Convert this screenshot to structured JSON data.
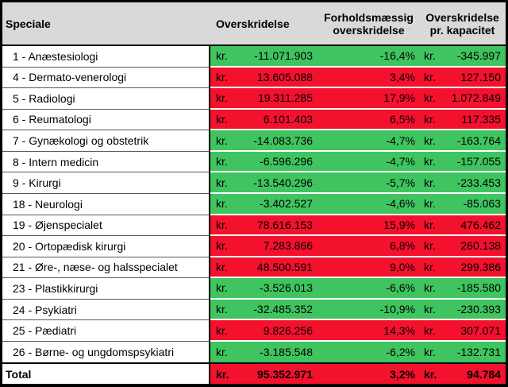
{
  "chart_data": {
    "type": "table",
    "columns": [
      "Speciale",
      "Overskridelse",
      "Forholdsmæssig overskridelse",
      "Overskridelse pr. kapacitet"
    ],
    "currency_prefix": "kr.",
    "rows": [
      {
        "speciale": "1 - Anæstesiologi",
        "overskridelse": "-11.071.903",
        "pct": "-16,4%",
        "per_kapacitet": "-345.997",
        "color": "green"
      },
      {
        "speciale": "4 - Dermato-venerologi",
        "overskridelse": "13.605.088",
        "pct": "3,4%",
        "per_kapacitet": "127.150",
        "color": "red"
      },
      {
        "speciale": "5 - Radiologi",
        "overskridelse": "19.311.285",
        "pct": "17,9%",
        "per_kapacitet": "1.072.849",
        "color": "red"
      },
      {
        "speciale": "6 - Reumatologi",
        "overskridelse": "6.101.403",
        "pct": "6,5%",
        "per_kapacitet": "117.335",
        "color": "red"
      },
      {
        "speciale": "7 - Gynækologi og obstetrik",
        "overskridelse": "-14.083.736",
        "pct": "-4,7%",
        "per_kapacitet": "-163.764",
        "color": "green"
      },
      {
        "speciale": "8 - Intern medicin",
        "overskridelse": "-6.596.296",
        "pct": "-4,7%",
        "per_kapacitet": "-157.055",
        "color": "green"
      },
      {
        "speciale": "9 - Kirurgi",
        "overskridelse": "-13.540.296",
        "pct": "-5,7%",
        "per_kapacitet": "-233.453",
        "color": "green"
      },
      {
        "speciale": "18 - Neurologi",
        "overskridelse": "-3.402.527",
        "pct": "-4,6%",
        "per_kapacitet": "-85.063",
        "color": "green"
      },
      {
        "speciale": "19 - Øjenspecialet",
        "overskridelse": "78.616.153",
        "pct": "15,9%",
        "per_kapacitet": "476.462",
        "color": "red"
      },
      {
        "speciale": "20 - Ortopædisk kirurgi",
        "overskridelse": "7.283.866",
        "pct": "6,8%",
        "per_kapacitet": "260.138",
        "color": "red"
      },
      {
        "speciale": "21 - Øre-, næse- og halsspecialet",
        "overskridelse": "48.500.591",
        "pct": "9,0%",
        "per_kapacitet": "299.386",
        "color": "red"
      },
      {
        "speciale": "23 - Plastikkirurgi",
        "overskridelse": "-3.526.013",
        "pct": "-6,6%",
        "per_kapacitet": "-185.580",
        "color": "green"
      },
      {
        "speciale": "24 - Psykiatri",
        "overskridelse": "-32.485.352",
        "pct": "-10,9%",
        "per_kapacitet": "-230.393",
        "color": "green"
      },
      {
        "speciale": "25 - Pædiatri",
        "overskridelse": "9.826.256",
        "pct": "14,3%",
        "per_kapacitet": "307.071",
        "color": "red"
      },
      {
        "speciale": "26 - Børne- og ungdomspsykiatri",
        "overskridelse": "-3.185.548",
        "pct": "-6,2%",
        "per_kapacitet": "-132.731",
        "color": "green"
      }
    ],
    "total": {
      "speciale": "Total",
      "overskridelse": "95.352.971",
      "pct": "3,2%",
      "per_kapacitet": "94.784",
      "color": "red"
    },
    "colors": {
      "green": "#3FC45F",
      "red": "#F3112D",
      "header_bg": "#D9D9D9"
    },
    "layout": {
      "grid": "row separators only",
      "legend": "none"
    }
  }
}
